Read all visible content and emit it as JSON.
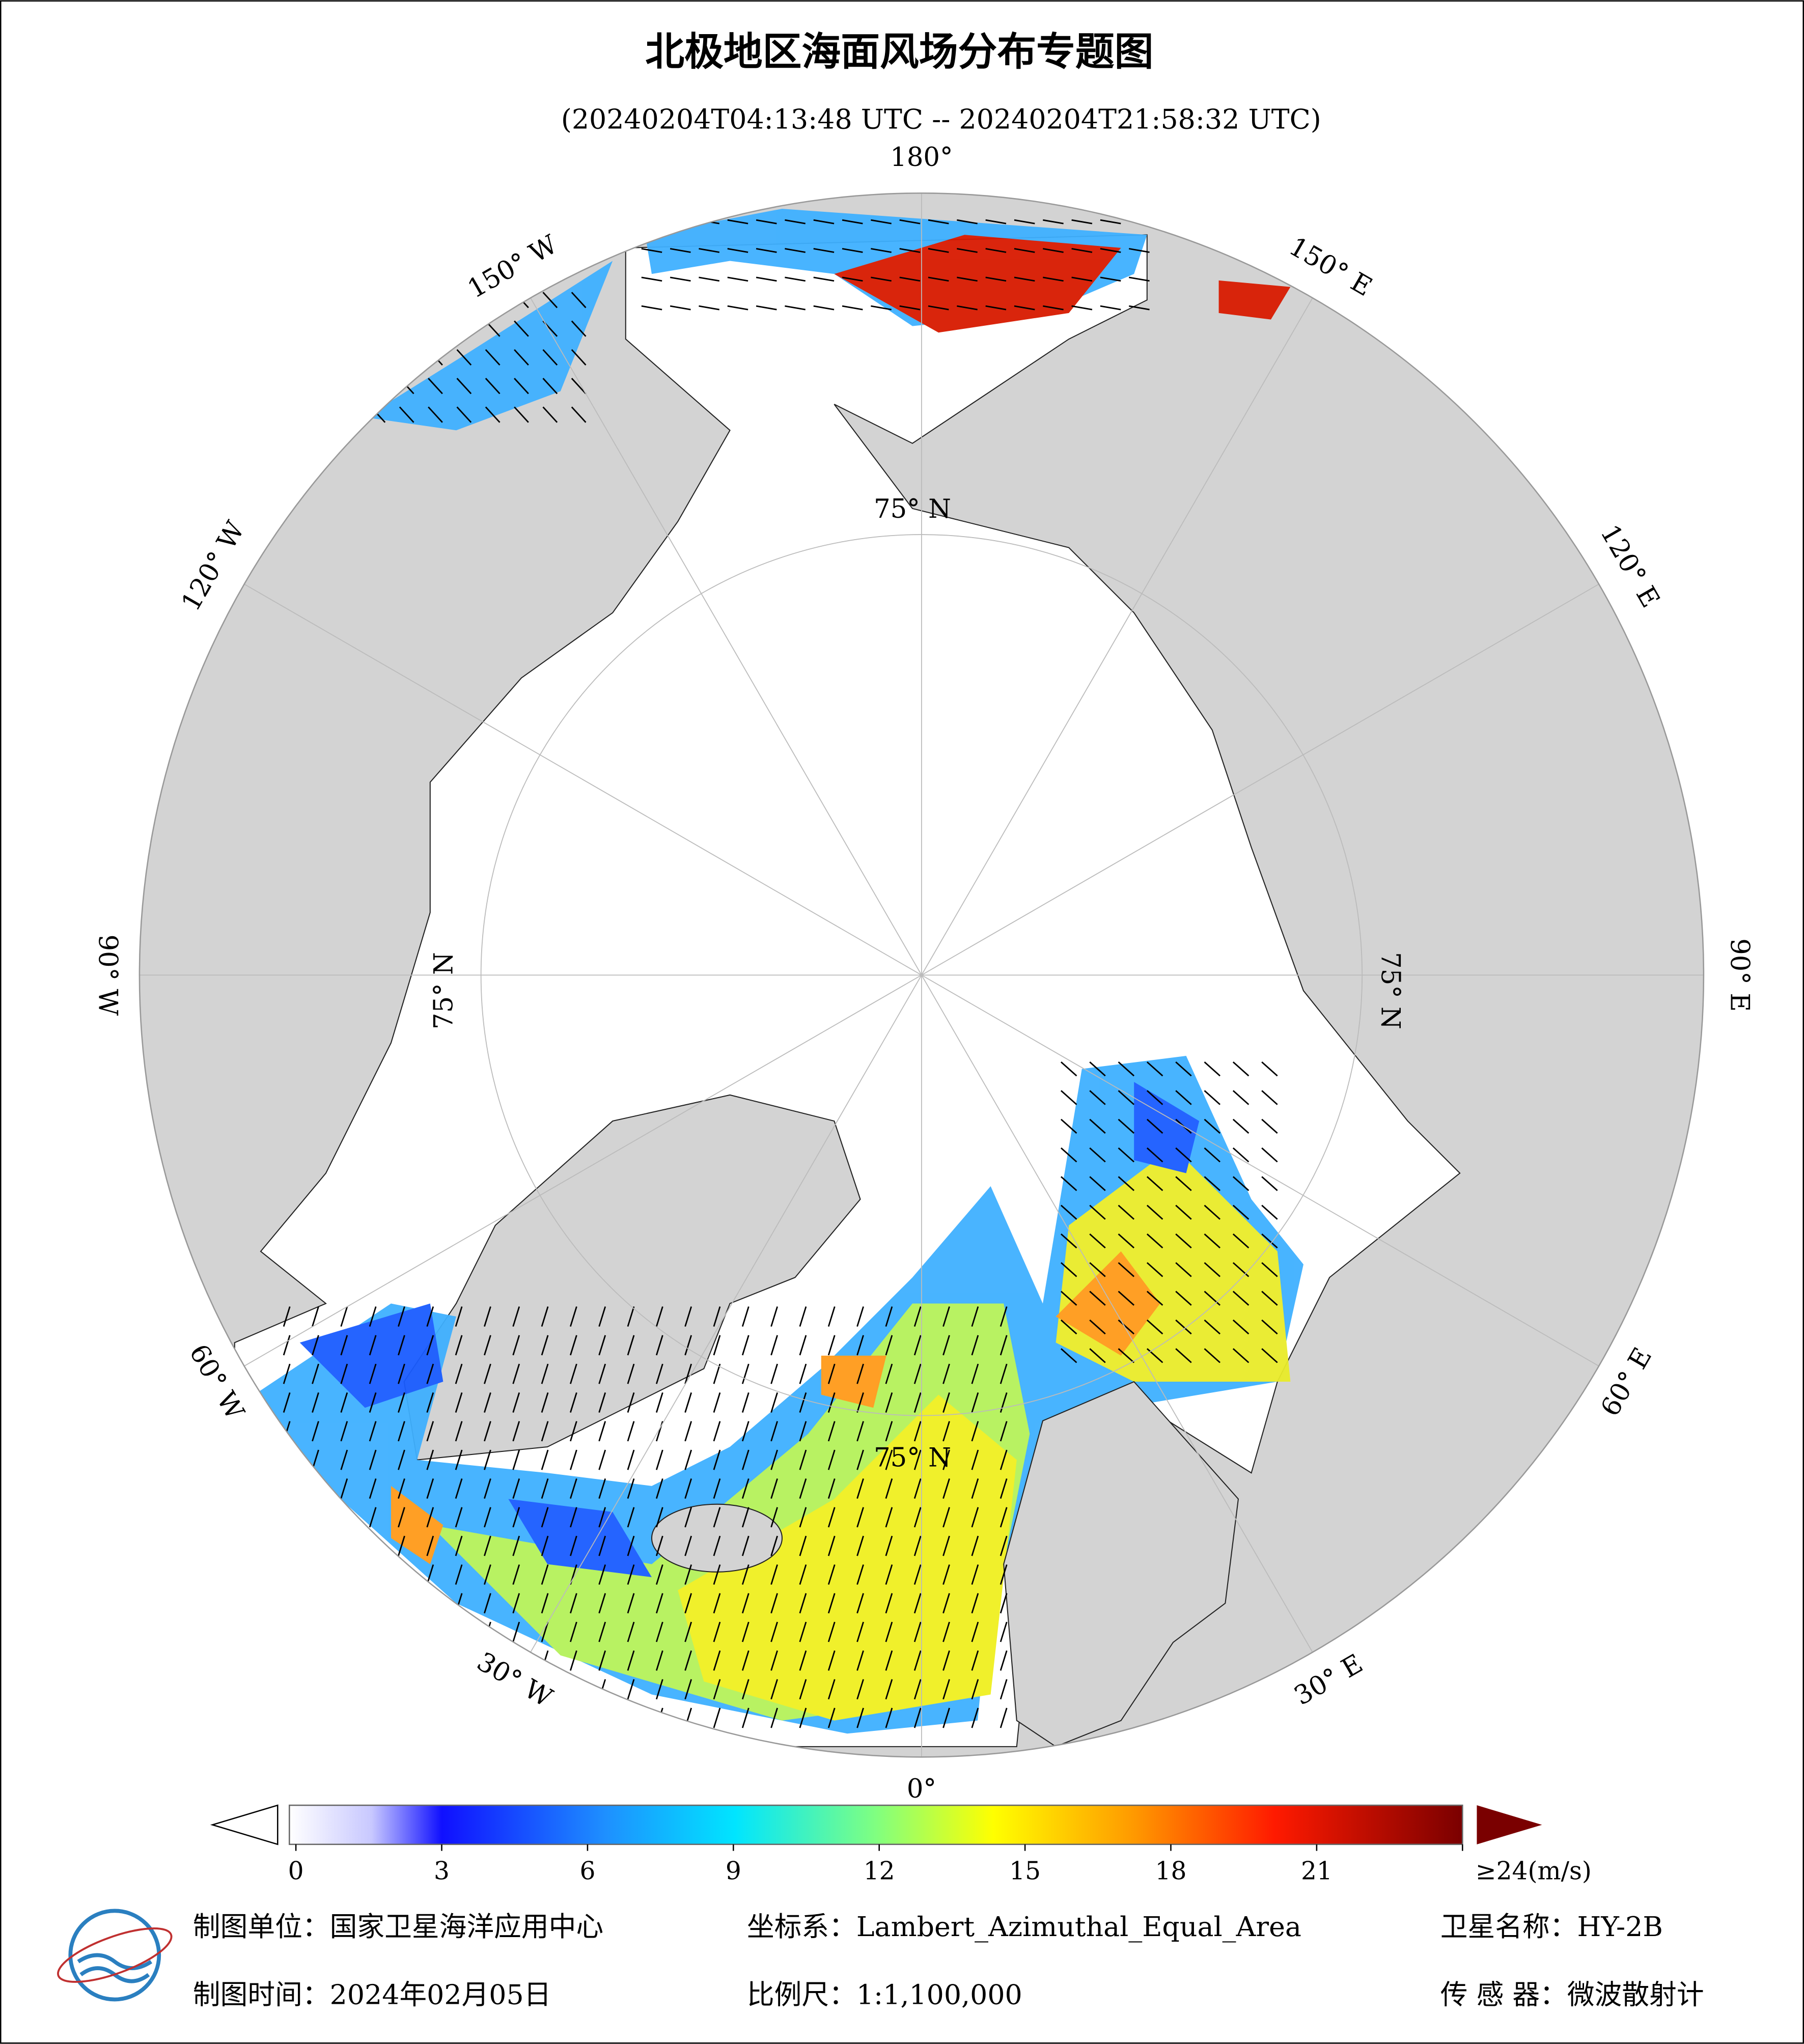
{
  "header": {
    "title": "北极地区海面风场分布专题图",
    "subtitle": "(20240204T04:13:48 UTC -- 20240204T21:58:32 UTC)"
  },
  "map": {
    "meridians": [
      {
        "value": 180,
        "label": "180°"
      },
      {
        "value": 150,
        "label": "150° E"
      },
      {
        "value": 120,
        "label": "120° E"
      },
      {
        "value": 90,
        "label": "90° E"
      },
      {
        "value": 60,
        "label": "60° E"
      },
      {
        "value": 30,
        "label": "30° E"
      },
      {
        "value": 0,
        "label": "0°"
      },
      {
        "value": -30,
        "label": "30° W"
      },
      {
        "value": -60,
        "label": "60° W"
      },
      {
        "value": -90,
        "label": "90° W"
      },
      {
        "value": -120,
        "label": "120° W"
      },
      {
        "value": -150,
        "label": "150° W"
      }
    ],
    "parallel": {
      "value": 75,
      "label": "75° N"
    }
  },
  "colorbar": {
    "ticks": [
      0,
      3,
      6,
      9,
      12,
      15,
      18,
      21,
      {
        "value": 24,
        "label": "≥24(m/s)"
      }
    ]
  },
  "footer": {
    "unit": "制图单位：国家卫星海洋应用中心",
    "coordinate_system": "坐标系：Lambert_Azimuthal_Equal_Area",
    "satellite": "卫星名称：HY-2B",
    "date": "制图时间：2024年02月05日",
    "scale": "比例尺：1:1,100,000",
    "sensor": "传 感 器：微波散射计"
  }
}
